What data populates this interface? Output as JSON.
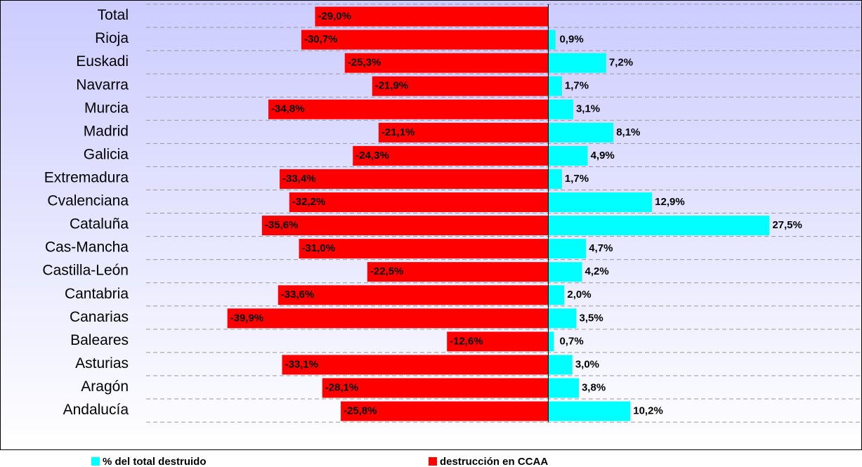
{
  "chart_data": {
    "type": "bar",
    "orientation": "horizontal",
    "categories": [
      "Total",
      "Rioja",
      "Euskadi",
      "Navarra",
      "Murcia",
      "Madrid",
      "Galicia",
      "Extremadura",
      "Cvalenciana",
      "Cataluña",
      "Cas-Mancha",
      "Castilla-León",
      "Cantabria",
      "Canarias",
      "Baleares",
      "Asturias",
      "Aragón",
      "Andalucía"
    ],
    "series": [
      {
        "name": "% del total destruido",
        "color": "#00ffff",
        "values": [
          null,
          0.9,
          7.2,
          1.7,
          3.1,
          8.1,
          4.9,
          1.7,
          12.9,
          27.5,
          4.7,
          4.2,
          2.0,
          3.5,
          0.7,
          3.0,
          3.8,
          10.2
        ],
        "value_labels": [
          null,
          "0,9%",
          "7,2%",
          "1,7%",
          "3,1%",
          "8,1%",
          "4,9%",
          "1,7%",
          "12,9%",
          "27,5%",
          "4,7%",
          "4,2%",
          "2,0%",
          "3,5%",
          "0,7%",
          "3,0%",
          "3,8%",
          "10,2%"
        ]
      },
      {
        "name": "destrucción en CCAA",
        "color": "#ff0000",
        "values": [
          -29.0,
          -30.7,
          -25.3,
          -21.9,
          -34.8,
          -21.1,
          -24.3,
          -33.4,
          -32.2,
          -35.6,
          -31.0,
          -22.5,
          -33.6,
          -39.9,
          -12.6,
          -33.1,
          -28.1,
          -25.8
        ],
        "value_labels": [
          "-29,0%",
          "-30,7%",
          "-25,3%",
          "-21,9%",
          "-34,8%",
          "-21,1%",
          "-24,3%",
          "-33,4%",
          "-32,2%",
          "-35,6%",
          "-31,0%",
          "-22,5%",
          "-33,6%",
          "-39,9%",
          "-12,6%",
          "-33,1%",
          "-28,1%",
          "-25,8%"
        ]
      }
    ],
    "xlim": [
      -50,
      39
    ],
    "legend": "bottom",
    "grid": true
  }
}
